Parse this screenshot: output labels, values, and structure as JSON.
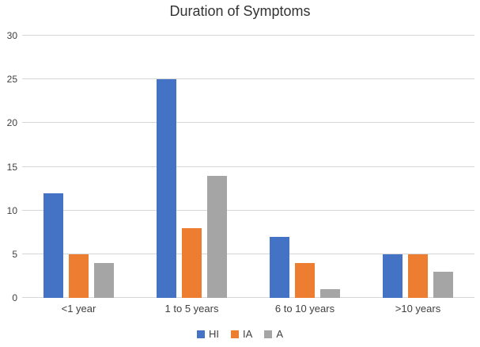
{
  "chart_data": {
    "type": "bar",
    "title": "Duration of Symptoms",
    "categories": [
      "<1 year",
      "1 to 5 years",
      "6 to 10 years",
      ">10 years"
    ],
    "series": [
      {
        "name": "HI",
        "color": "#4472C4",
        "values": [
          12,
          25,
          7,
          5
        ]
      },
      {
        "name": "IA",
        "color": "#ED7D31",
        "values": [
          5,
          8,
          4,
          5
        ]
      },
      {
        "name": "A",
        "color": "#A5A5A5",
        "values": [
          4,
          14,
          1,
          3
        ]
      }
    ],
    "xlabel": "",
    "ylabel": "",
    "ylim": [
      0,
      30
    ],
    "yticks": [
      0,
      5,
      10,
      15,
      20,
      25,
      30
    ],
    "grid": true,
    "legend_position": "bottom"
  },
  "colors": {
    "gridline": "#D6D6D6",
    "axis_text": "#404040",
    "title_text": "#333333",
    "background": "#FFFFFF"
  }
}
